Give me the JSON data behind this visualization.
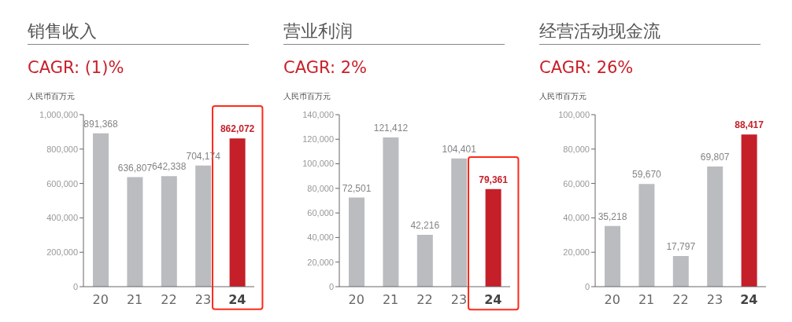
{
  "chart_data": [
    {
      "type": "bar",
      "title": "销售收入",
      "subtitle": "CAGR: (1)%",
      "ylabel": "人民币百万元",
      "categories": [
        "20",
        "21",
        "22",
        "23",
        "24"
      ],
      "values": [
        891368,
        636807,
        642338,
        704174,
        862072
      ],
      "colors": [
        "#bbbcc0",
        "#bbbcc0",
        "#bbbcc0",
        "#bbbcc0",
        "#c51f29"
      ],
      "value_labels": [
        "891,368",
        "636,807",
        "642,338",
        "704,174",
        "862,072"
      ],
      "ylim": [
        0,
        1000000
      ],
      "yticks": [
        {
          "value": 0,
          "label": "0"
        },
        {
          "value": 200000,
          "label": "200,000"
        },
        {
          "value": 400000,
          "label": "400,000"
        },
        {
          "value": 600000,
          "label": "600,000"
        },
        {
          "value": 800000,
          "label": "800,000"
        },
        {
          "value": 1000000,
          "label": "1,000,000"
        }
      ],
      "grid": false,
      "legend": false
    },
    {
      "type": "bar",
      "title": "营业利润",
      "subtitle": "CAGR: 2%",
      "ylabel": "人民币百万元",
      "categories": [
        "20",
        "21",
        "22",
        "23",
        "24"
      ],
      "values": [
        72501,
        121412,
        42216,
        104401,
        79361
      ],
      "colors": [
        "#bbbcc0",
        "#bbbcc0",
        "#bbbcc0",
        "#bbbcc0",
        "#c51f29"
      ],
      "value_labels": [
        "72,501",
        "121,412",
        "42,216",
        "104,401",
        "79,361"
      ],
      "ylim": [
        0,
        140000
      ],
      "yticks": [
        0,
        {
          "value": 20000,
          "label": "20,000"
        },
        {
          "value": 40000,
          "label": "40,000"
        },
        {
          "value": 60000,
          "label": "60,000"
        },
        {
          "value": 80000,
          "label": "80,000"
        },
        {
          "value": 100000,
          "label": "100,000"
        },
        {
          "value": 120000,
          "label": "120,000"
        },
        {
          "value": 140000,
          "label": "140,000"
        }
      ],
      "grid": false,
      "legend": false
    },
    {
      "type": "bar",
      "title": "经营活动现金流",
      "subtitle": "CAGR: 26%",
      "ylabel": "人民币百万元",
      "categories": [
        "20",
        "21",
        "22",
        "23",
        "24"
      ],
      "values": [
        35218,
        59670,
        17797,
        69807,
        88417
      ],
      "colors": [
        "#bbbcc0",
        "#bbbcc0",
        "#bbbcc0",
        "#bbbcc0",
        "#c51f29"
      ],
      "value_labels": [
        "35,218",
        "59,670",
        "17,797",
        "69,807",
        "88,417"
      ],
      "ylim": [
        0,
        100000
      ],
      "yticks": [
        0,
        {
          "value": 20000,
          "label": "20,000"
        },
        {
          "value": 40000,
          "label": "40,000"
        },
        {
          "value": 60000,
          "label": "60,000"
        },
        {
          "value": 80000,
          "label": "80,000"
        },
        {
          "value": 100000,
          "label": "100,000"
        }
      ],
      "grid": false,
      "legend": false
    }
  ]
}
